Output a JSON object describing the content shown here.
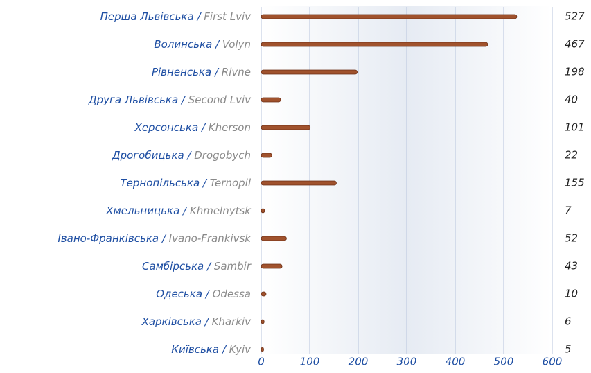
{
  "chart_data": {
    "type": "bar",
    "orientation": "horizontal",
    "categories": [
      {
        "ua": "Перша Львівська",
        "en": "First Lviv"
      },
      {
        "ua": "Волинська",
        "en": "Volyn"
      },
      {
        "ua": "Рівненська",
        "en": "Rivne"
      },
      {
        "ua": "Друга Львівська",
        "en": "Second Lviv"
      },
      {
        "ua": "Херсонська",
        "en": "Kherson"
      },
      {
        "ua": "Дрогобицька",
        "en": "Drogobych"
      },
      {
        "ua": "Тернопільська",
        "en": "Ternopil"
      },
      {
        "ua": "Хмельницька",
        "en": "Khmelnytsk"
      },
      {
        "ua": "Івано-Франківська",
        "en": "Ivano-Frankivsk"
      },
      {
        "ua": "Самбірська",
        "en": "Sambir"
      },
      {
        "ua": "Одеська",
        "en": "Odessa"
      },
      {
        "ua": "Харківська",
        "en": "Kharkiv"
      },
      {
        "ua": "Київська",
        "en": "Kyiv"
      }
    ],
    "values": [
      527,
      467,
      198,
      40,
      101,
      22,
      155,
      7,
      52,
      43,
      10,
      6,
      5
    ],
    "color": "#a0522d",
    "xlim": [
      0,
      600
    ],
    "xticks": [
      0,
      100,
      200,
      300,
      400,
      500,
      600
    ],
    "grid": true
  }
}
